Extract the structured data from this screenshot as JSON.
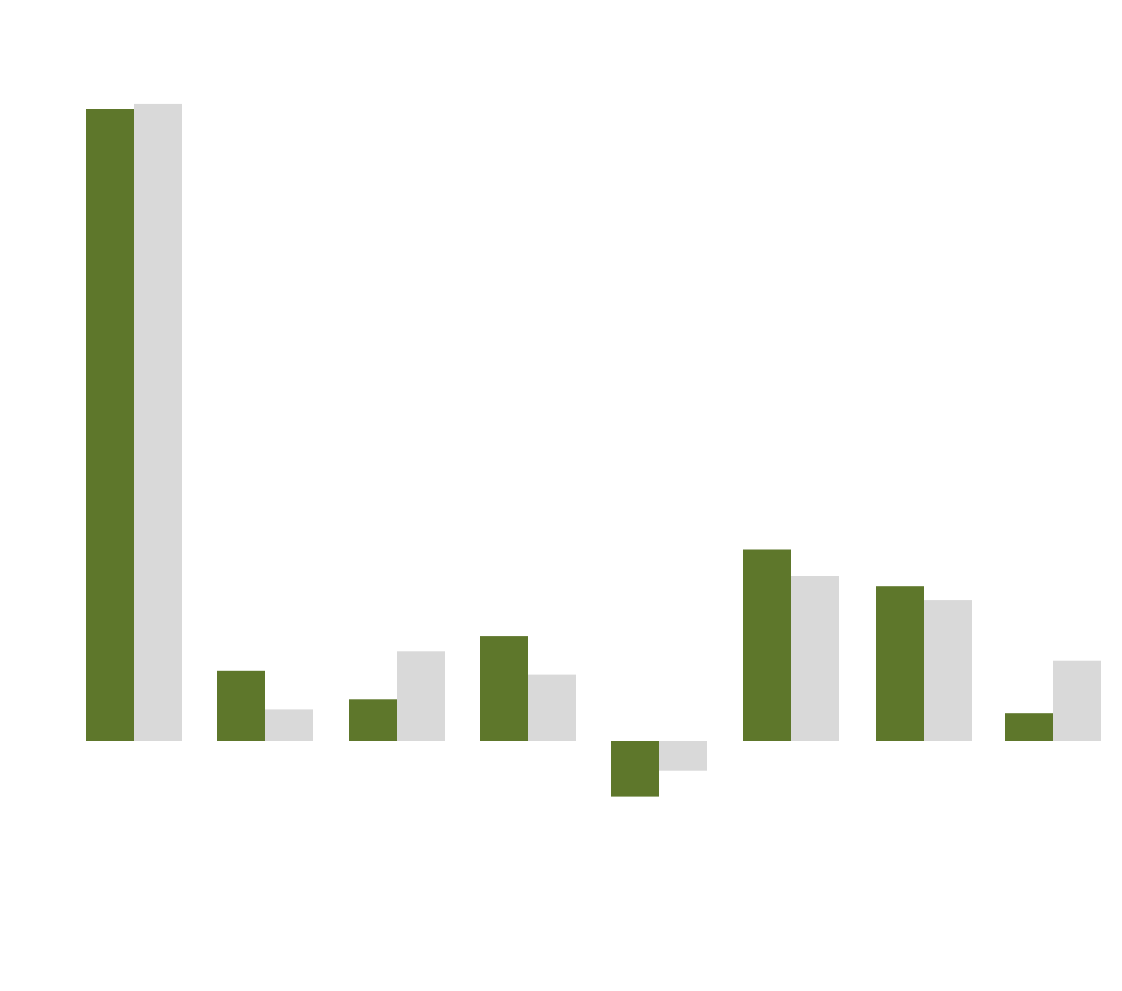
{
  "chart_data": {
    "type": "bar",
    "title": "",
    "xlabel": "",
    "ylabel": "",
    "categories": [
      "",
      "",
      "",
      "",
      "",
      "",
      "",
      ""
    ],
    "series": [
      {
        "color": "#5e772b",
        "values": [
          100,
          11.1,
          6.6,
          16.6,
          -8.8,
          30.3,
          24.5,
          4.4
        ]
      },
      {
        "color": "#d9d9d9",
        "values": [
          100.8,
          5,
          14.2,
          10.5,
          -4.7,
          26.1,
          22.3,
          12.7
        ]
      }
    ],
    "ylim": [
      -8.8,
      100.8
    ],
    "grid": false,
    "legend": "none"
  }
}
